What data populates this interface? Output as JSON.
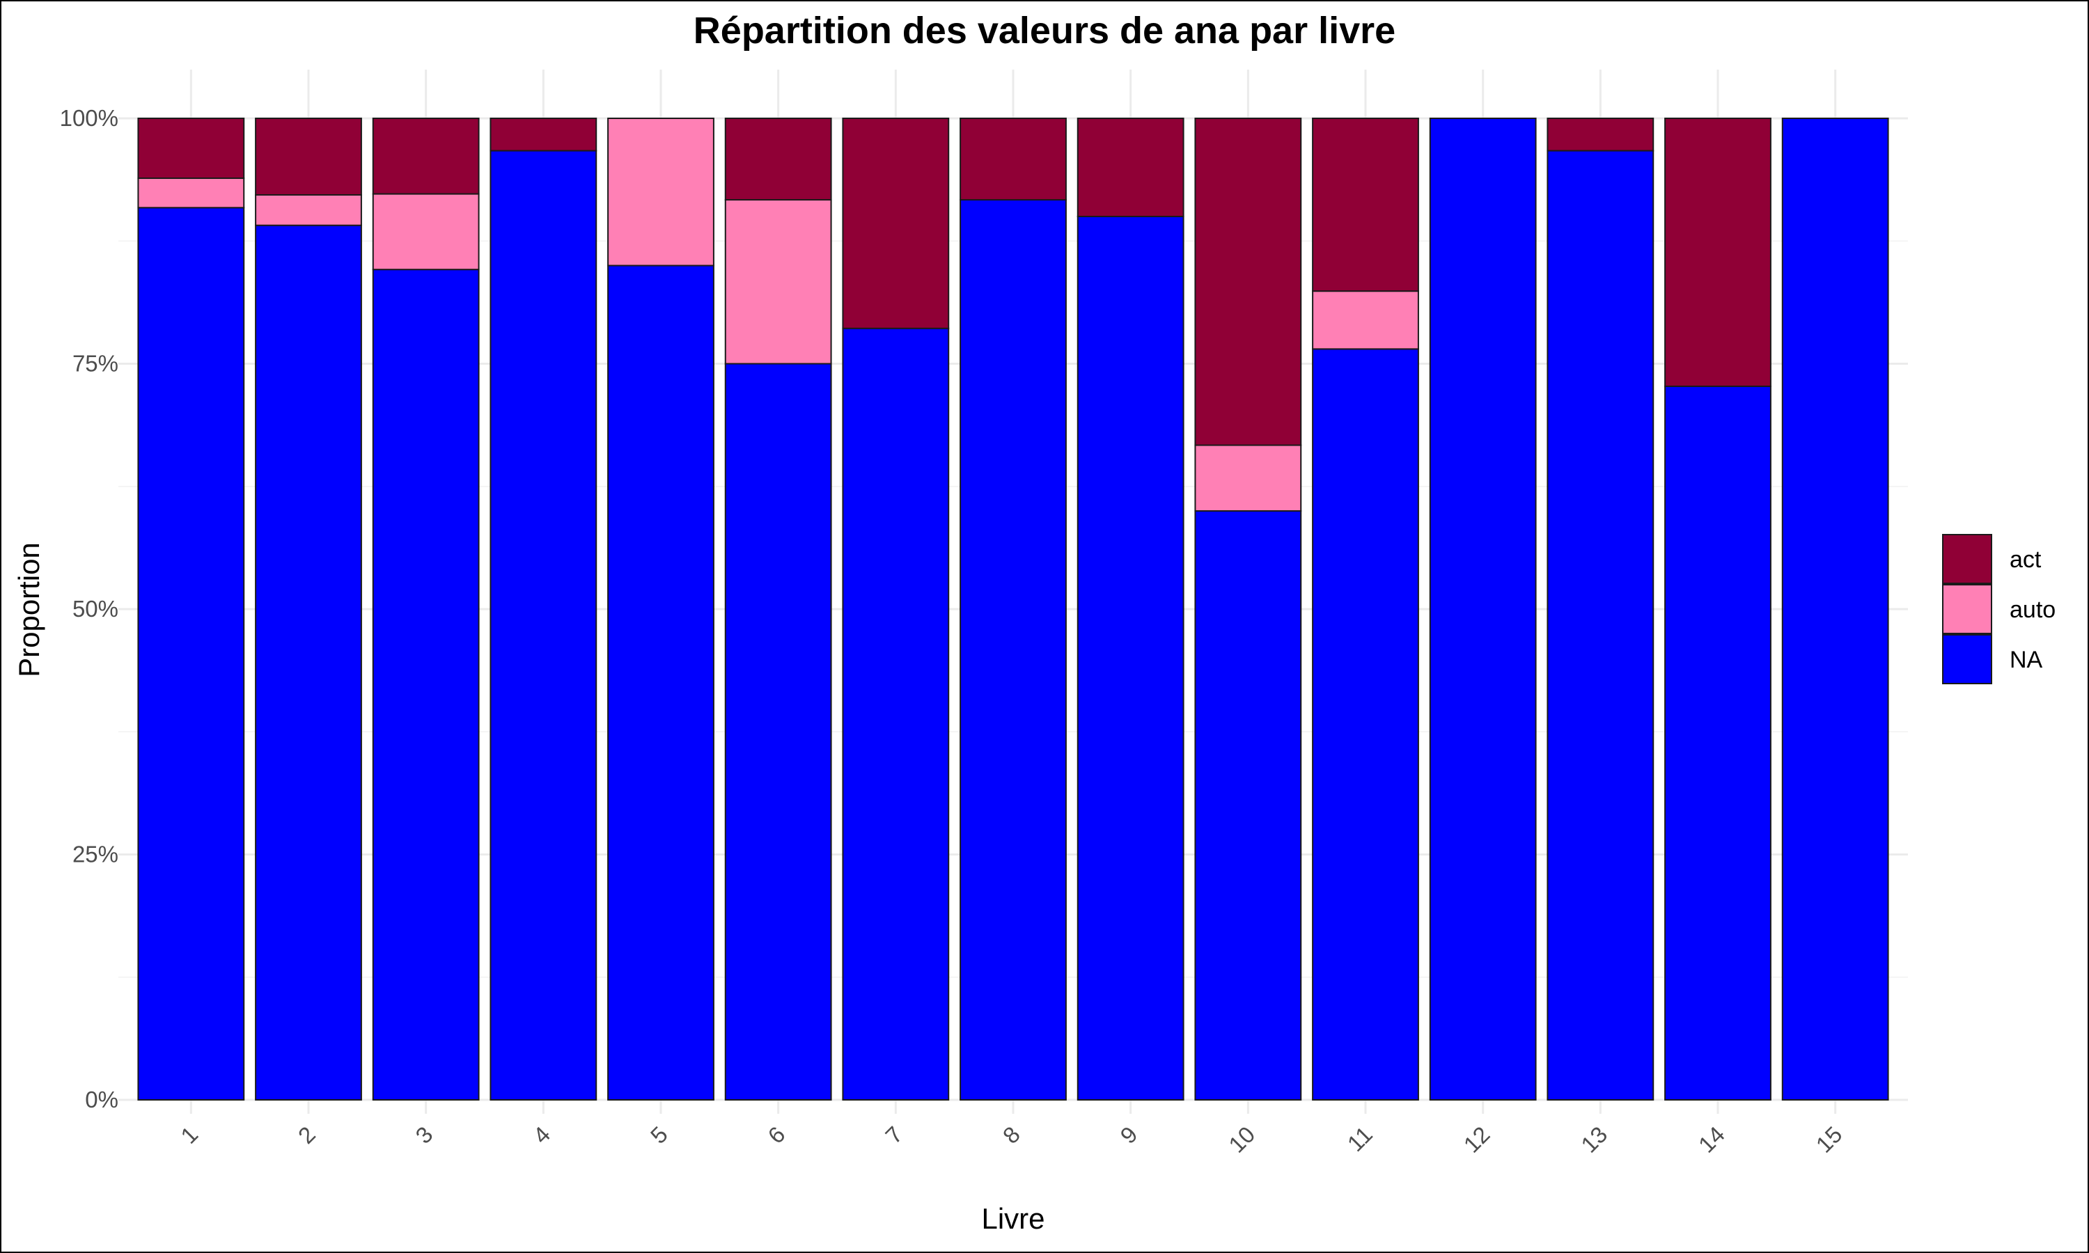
{
  "chart_data": {
    "type": "bar",
    "stacked": true,
    "title": "Répartition des valeurs de ana par livre",
    "xlabel": "Livre",
    "ylabel": "Proportion",
    "ylim": [
      0,
      1
    ],
    "y_ticks": [
      "0%",
      "25%",
      "50%",
      "75%",
      "100%"
    ],
    "categories": [
      "1",
      "2",
      "3",
      "4",
      "5",
      "6",
      "7",
      "8",
      "9",
      "10",
      "11",
      "12",
      "13",
      "14",
      "15"
    ],
    "series": [
      {
        "name": "NA",
        "color": "#0000FF",
        "values": [
          0.909,
          0.891,
          0.846,
          0.967,
          0.85,
          0.75,
          0.786,
          0.917,
          0.9,
          0.6,
          0.765,
          1.0,
          0.967,
          0.727,
          1.0
        ]
      },
      {
        "name": "auto",
        "color": "#FF80B5",
        "values": [
          0.03,
          0.031,
          0.077,
          0.0,
          0.15,
          0.167,
          0.0,
          0.0,
          0.0,
          0.067,
          0.059,
          0.0,
          0.0,
          0.0,
          0.0
        ]
      },
      {
        "name": "act",
        "color": "#900036",
        "values": [
          0.061,
          0.078,
          0.077,
          0.033,
          0.0,
          0.083,
          0.214,
          0.083,
          0.1,
          0.333,
          0.176,
          0.0,
          0.033,
          0.273,
          0.0
        ]
      }
    ],
    "legend": {
      "position": "right",
      "order": [
        "act",
        "auto",
        "NA"
      ]
    },
    "grid": true
  }
}
